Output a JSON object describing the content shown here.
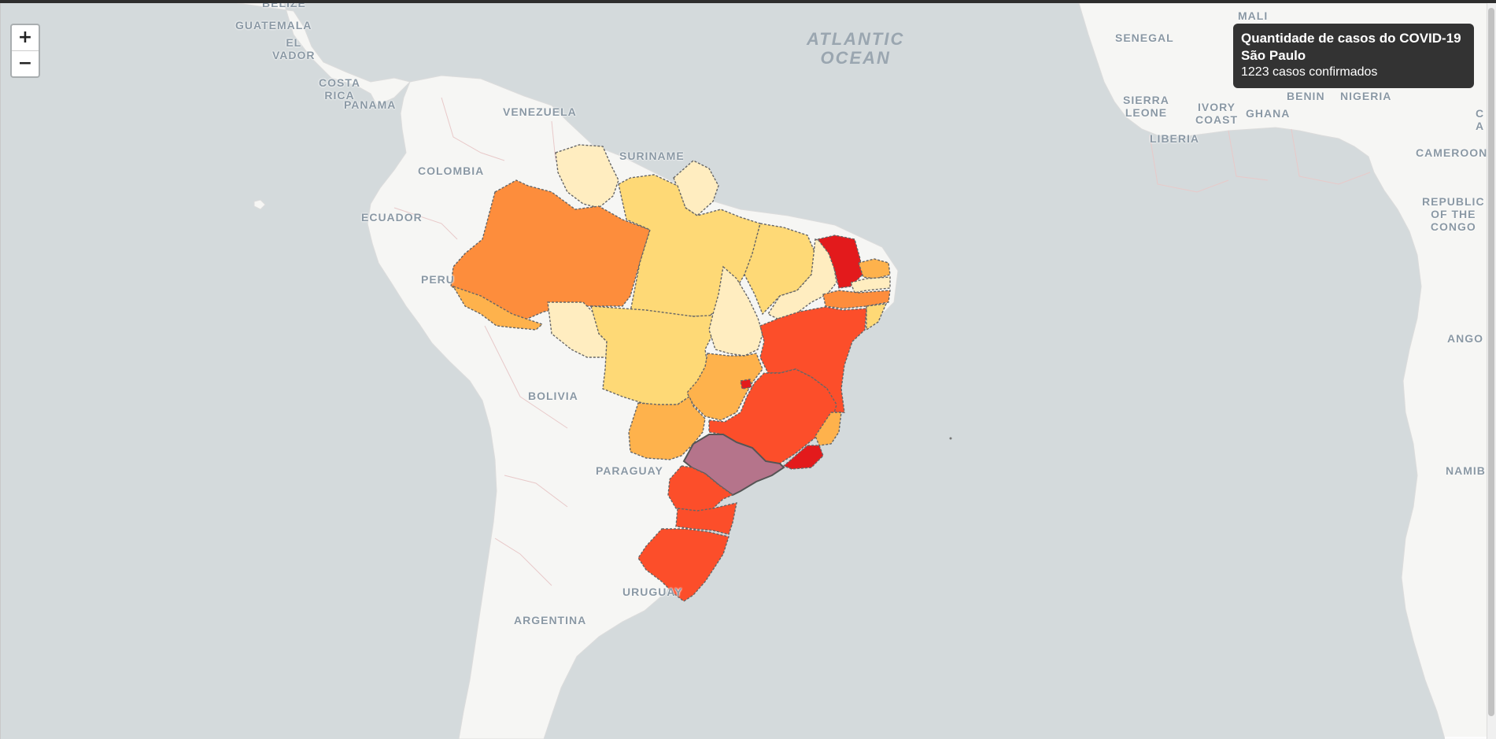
{
  "map": {
    "labels": {
      "belize": "BELIZE",
      "guatemala": "GUATEMALA",
      "el_salvador": "EL\nVADOR",
      "costa_rica": "COSTA\nRICA",
      "panama": "PANAMA",
      "venezuela": "VENEZUELA",
      "suriname": "SURINAME",
      "colombia": "COLOMBIA",
      "ecuador": "ECUADOR",
      "peru": "PERU",
      "bolivia": "BOLIVIA",
      "paraguay": "PARAGUAY",
      "uruguay": "URUGUAY",
      "argentina": "ARGENTINA",
      "atlantic_ocean": "Atlantic\nOcean",
      "senegal": "SENEGAL",
      "mali": "MALI",
      "sierra_leone": "SIERRA\nLEONE",
      "ivory_coast": "IVORY\nCOAST",
      "ghana": "GHANA",
      "liberia": "LIBERIA",
      "benin": "BENIN",
      "nigeria": "NIGERIA",
      "cameroon": "CAMEROON",
      "congo": "REPUBLIC\nOF THE\nCONGO",
      "angola": "ANGO",
      "namibia": "NAMIB",
      "ca": "C\nA"
    },
    "choropleth_colors": {
      "very_low": "#ffedc0",
      "low": "#fed976",
      "medium": "#feb24c",
      "medium_high": "#fd8d3c",
      "high": "#fc4e2a",
      "very_high": "#e31a1c",
      "highlighted": "#b5748b"
    }
  },
  "zoom": {
    "in_label": "+",
    "out_label": "−"
  },
  "info_panel": {
    "title": "Quantidade de casos do COVID-19",
    "state": "São Paulo",
    "cases_text": "1223 casos confirmados"
  }
}
